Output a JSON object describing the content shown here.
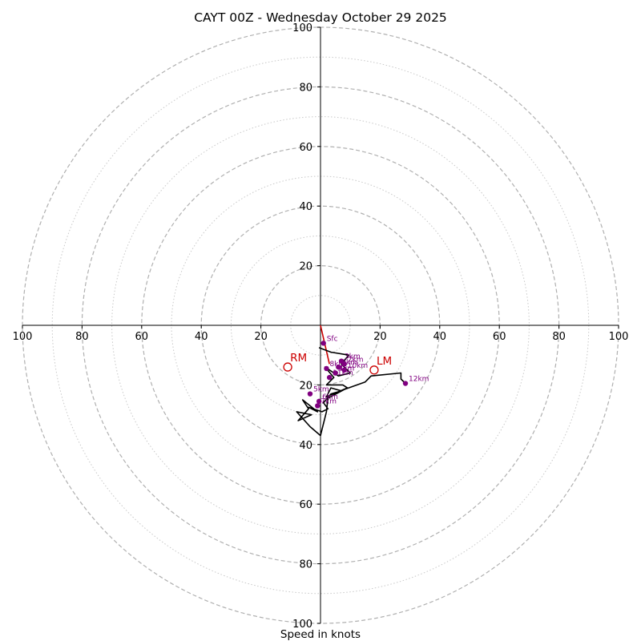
{
  "chart_data": {
    "type": "hodograph",
    "title": "CAYT 00Z - Wednesday October 29 2025",
    "xlabel": "Speed in knots",
    "axis_range": [
      -100,
      100
    ],
    "major_ring_interval": 20,
    "minor_ring_interval": 10,
    "tick_labels": [
      "100",
      "80",
      "60",
      "40",
      "20",
      "20",
      "40",
      "60",
      "80",
      "100"
    ],
    "y_tick_labels": [
      "100",
      "80",
      "60",
      "40",
      "20",
      "20",
      "40",
      "60",
      "80",
      "100"
    ],
    "colors": {
      "trace": "#000000",
      "markers": "#800080",
      "storm_motion": "#cc0000",
      "axes": "#000000",
      "major_rings": "#b0b0b0",
      "minor_rings": "#c8c8c8"
    },
    "trace": [
      [
        -0.5,
        -7.5
      ],
      [
        3.5,
        -9
      ],
      [
        9.5,
        -10
      ],
      [
        7,
        -13
      ],
      [
        10,
        -16
      ],
      [
        6,
        -17
      ],
      [
        1.5,
        -14
      ],
      [
        4.5,
        -17.5
      ],
      [
        2,
        -20
      ],
      [
        7.5,
        -20
      ],
      [
        9,
        -21
      ],
      [
        2,
        -24
      ],
      [
        3.5,
        -21
      ],
      [
        7,
        -22
      ],
      [
        3.5,
        -23
      ],
      [
        1,
        -26
      ],
      [
        2.5,
        -28
      ],
      [
        0.5,
        -29
      ],
      [
        -4,
        -27.5
      ],
      [
        -1,
        -29
      ],
      [
        -6,
        -25
      ],
      [
        -4,
        -28
      ],
      [
        -7.5,
        -32
      ],
      [
        -3,
        -30
      ],
      [
        -8,
        -29
      ],
      [
        -3.5,
        -34
      ],
      [
        0,
        -37
      ],
      [
        2,
        -29
      ],
      [
        2.5,
        -24.5
      ],
      [
        8,
        -21.5
      ],
      [
        15,
        -19
      ],
      [
        17,
        -17
      ],
      [
        27,
        -16
      ],
      [
        27,
        -18
      ],
      [
        28.5,
        -19.5
      ]
    ],
    "height_markers": [
      {
        "label": "Sfc",
        "u": 1,
        "v": -6
      },
      {
        "label": "1km",
        "u": 5,
        "v": -16
      },
      {
        "label": "2km",
        "u": 8,
        "v": -13
      },
      {
        "label": "3km",
        "u": 7,
        "v": -12
      },
      {
        "label": "4km",
        "u": 5,
        "v": -16
      },
      {
        "label": "5km",
        "u": -3.5,
        "v": -23
      },
      {
        "label": "6km",
        "u": -0.5,
        "v": -25.5
      },
      {
        "label": "7km",
        "u": -1,
        "v": -27
      },
      {
        "label": "8km",
        "u": 2,
        "v": -14.5
      },
      {
        "label": "9km",
        "u": 6,
        "v": -14
      },
      {
        "label": "10km",
        "u": 8,
        "v": -15
      },
      {
        "label": "11km",
        "u": 3,
        "v": -17.5
      },
      {
        "label": "12km",
        "u": 28.5,
        "v": -19.5
      }
    ],
    "storm_motion": [
      {
        "label": "RM",
        "u": -11,
        "v": -14
      },
      {
        "label": "LM",
        "u": 18,
        "v": -15
      }
    ],
    "mean_wind_vector": {
      "from": [
        0,
        0
      ],
      "to": [
        3,
        -13
      ]
    }
  }
}
